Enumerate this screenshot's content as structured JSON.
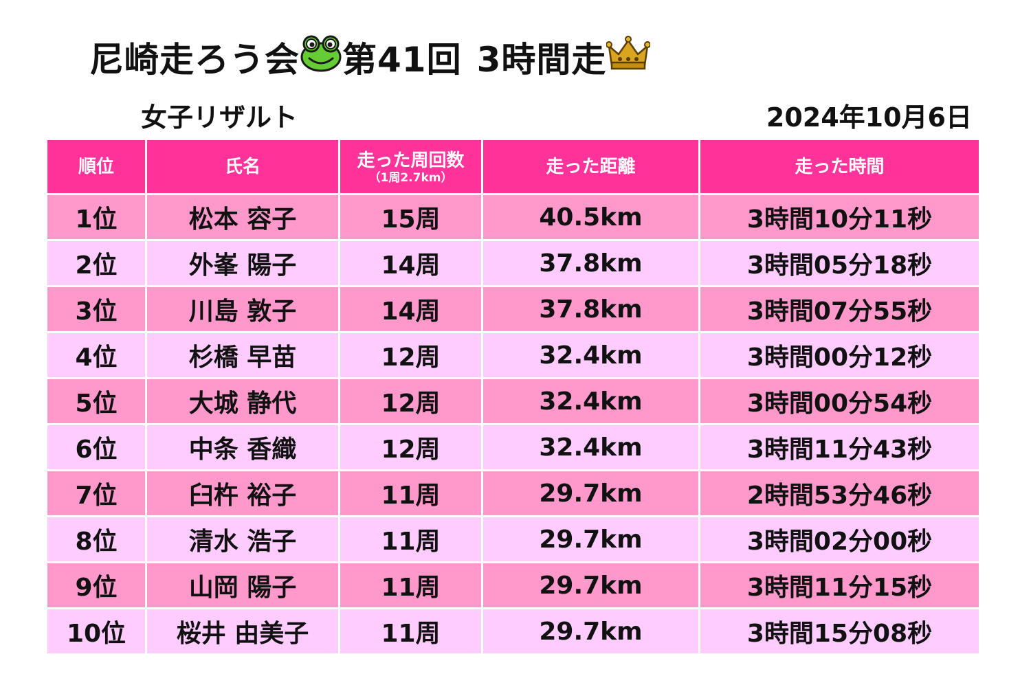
{
  "header": {
    "title_part1": "尼崎走ろう会",
    "title_part2": "第41回",
    "title_part3": "3時間走",
    "title_icons": [
      "frog-icon",
      "crown-icon"
    ],
    "subtitle": "女子リザルト",
    "date": "2024年10月6日"
  },
  "colors": {
    "header_bg": "#ff3399",
    "row_odd": "#ff99cc",
    "row_even": "#ffccff"
  },
  "table": {
    "columns": [
      {
        "label": "順位"
      },
      {
        "label": "氏名"
      },
      {
        "label": "走った周回数",
        "sub": "（1周2.7km）"
      },
      {
        "label": "走った距離"
      },
      {
        "label": "走った時間"
      }
    ],
    "rows": [
      {
        "rank": "1位",
        "name": "松本 容子",
        "laps": "15周",
        "distance": "40.5km",
        "time": "3時間10分11秒"
      },
      {
        "rank": "2位",
        "name": "外峯 陽子",
        "laps": "14周",
        "distance": "37.8km",
        "time": "3時間05分18秒"
      },
      {
        "rank": "3位",
        "name": "川島 敦子",
        "laps": "14周",
        "distance": "37.8km",
        "time": "3時間07分55秒"
      },
      {
        "rank": "4位",
        "name": "杉橋 早苗",
        "laps": "12周",
        "distance": "32.4km",
        "time": "3時間00分12秒"
      },
      {
        "rank": "5位",
        "name": "大城 静代",
        "laps": "12周",
        "distance": "32.4km",
        "time": "3時間00分54秒"
      },
      {
        "rank": "6位",
        "name": "中条 香織",
        "laps": "12周",
        "distance": "32.4km",
        "time": "3時間11分43秒"
      },
      {
        "rank": "7位",
        "name": "臼杵 裕子",
        "laps": "11周",
        "distance": "29.7km",
        "time": "2時間53分46秒"
      },
      {
        "rank": "8位",
        "name": "清水 浩子",
        "laps": "11周",
        "distance": "29.7km",
        "time": "3時間02分00秒"
      },
      {
        "rank": "9位",
        "name": "山岡 陽子",
        "laps": "11周",
        "distance": "29.7km",
        "time": "3時間11分15秒"
      },
      {
        "rank": "10位",
        "name": "桜井 由美子",
        "laps": "11周",
        "distance": "29.7km",
        "time": "3時間15分08秒"
      }
    ]
  }
}
